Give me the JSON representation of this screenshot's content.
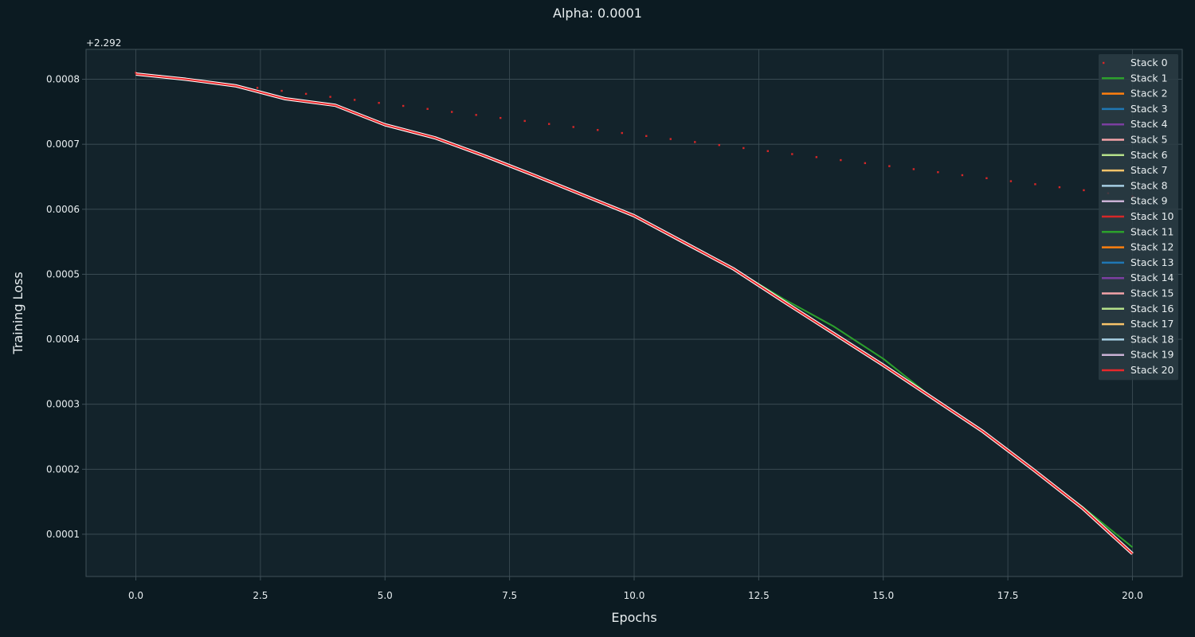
{
  "chart_data": {
    "type": "line",
    "title": "Alpha: 0.0001",
    "xlabel": "Epochs",
    "ylabel": "Training Loss",
    "y_offset_label": "+2.292",
    "xlim": [
      -1,
      21
    ],
    "ylim": [
      3.5e-05,
      0.000846
    ],
    "x_ticks": [
      0,
      2.5,
      5,
      7.5,
      10,
      12.5,
      15,
      17.5,
      20
    ],
    "x_tick_labels": [
      "0.0",
      "2.5",
      "5.0",
      "7.5",
      "10.0",
      "12.5",
      "15.0",
      "17.5",
      "20.0"
    ],
    "y_ticks": [
      0.0001,
      0.0002,
      0.0003,
      0.0004,
      0.0005,
      0.0006,
      0.0007,
      0.0008
    ],
    "y_tick_labels": [
      "0.0001",
      "0.0002",
      "0.0003",
      "0.0004",
      "0.0005",
      "0.0006",
      "0.0007",
      "0.0008"
    ],
    "grid": true,
    "legend_position": "top-right",
    "colors": {
      "background": "#0c1b22",
      "axes_background": "#13232b",
      "text": "#e8eef0",
      "grid": "#3f5058",
      "legend_background": "#2c3c44"
    },
    "stack0": {
      "name": "Stack 0",
      "color": "#d62728",
      "style": "dotted",
      "x_start": 0,
      "x_end": 20,
      "y_start": 0.00081,
      "y_end": 0.00062,
      "points": 42
    },
    "curve": {
      "x": [
        0,
        1,
        2,
        3,
        4,
        5,
        6,
        7,
        8,
        9,
        10,
        11,
        12,
        13,
        14,
        15,
        16,
        17,
        18,
        19,
        20
      ],
      "y": [
        0.000808,
        0.0008,
        0.00079,
        0.00077,
        0.00076,
        0.00073,
        0.00071,
        0.000682,
        0.000652,
        0.000621,
        0.00059,
        0.000549,
        0.000508,
        0.000458,
        0.000409,
        0.00036,
        0.000309,
        0.000258,
        0.0002,
        0.00014,
        7e-05
      ]
    },
    "green_curve": {
      "x": [
        0,
        1,
        2,
        3,
        4,
        5,
        6,
        7,
        8,
        9,
        10,
        11,
        12,
        13,
        14,
        15,
        16,
        17,
        18,
        19,
        20
      ],
      "y": [
        0.000808,
        0.0008,
        0.00079,
        0.00077,
        0.00076,
        0.00073,
        0.00071,
        0.000682,
        0.000652,
        0.000621,
        0.00059,
        0.000549,
        0.000508,
        0.000462,
        0.00042,
        0.00037,
        0.000309,
        0.000258,
        0.0002,
        0.000142,
        8e-05
      ]
    },
    "series": [
      {
        "name": "Stack 1",
        "color": "#2ca02c",
        "style": "line",
        "curve": "green_curve"
      },
      {
        "name": "Stack 2",
        "color": "#ff7f0e",
        "style": "line",
        "curve": "curve"
      },
      {
        "name": "Stack 3",
        "color": "#1f77b4",
        "style": "line",
        "curve": "curve"
      },
      {
        "name": "Stack 4",
        "color": "#7b3fa0",
        "style": "line",
        "curve": "curve"
      },
      {
        "name": "Stack 5",
        "color": "#f4a3a8",
        "style": "line",
        "curve": "curve"
      },
      {
        "name": "Stack 6",
        "color": "#b5e08a",
        "style": "line",
        "curve": "curve"
      },
      {
        "name": "Stack 7",
        "color": "#f9c46a",
        "style": "line",
        "curve": "curve"
      },
      {
        "name": "Stack 8",
        "color": "#a6cee3",
        "style": "line",
        "curve": "curve"
      },
      {
        "name": "Stack 9",
        "color": "#cab2d6",
        "style": "line",
        "curve": "curve"
      },
      {
        "name": "Stack 10",
        "color": "#d62728",
        "style": "line",
        "curve": "curve"
      },
      {
        "name": "Stack 11",
        "color": "#2ca02c",
        "style": "line",
        "curve": "curve"
      },
      {
        "name": "Stack 12",
        "color": "#ff7f0e",
        "style": "line",
        "curve": "curve"
      },
      {
        "name": "Stack 13",
        "color": "#1f77b4",
        "style": "line",
        "curve": "curve"
      },
      {
        "name": "Stack 14",
        "color": "#7b3fa0",
        "style": "line",
        "curve": "curve"
      },
      {
        "name": "Stack 15",
        "color": "#f4a3a8",
        "style": "line",
        "curve": "curve"
      },
      {
        "name": "Stack 16",
        "color": "#b5e08a",
        "style": "line",
        "curve": "curve"
      },
      {
        "name": "Stack 17",
        "color": "#f9c46a",
        "style": "line",
        "curve": "curve"
      },
      {
        "name": "Stack 18",
        "color": "#a6cee3",
        "style": "line",
        "curve": "curve"
      },
      {
        "name": "Stack 19",
        "color": "#cab2d6",
        "style": "line",
        "curve": "curve"
      },
      {
        "name": "Stack 20",
        "color": "#e8282b",
        "style": "line",
        "curve": "curve"
      }
    ]
  }
}
